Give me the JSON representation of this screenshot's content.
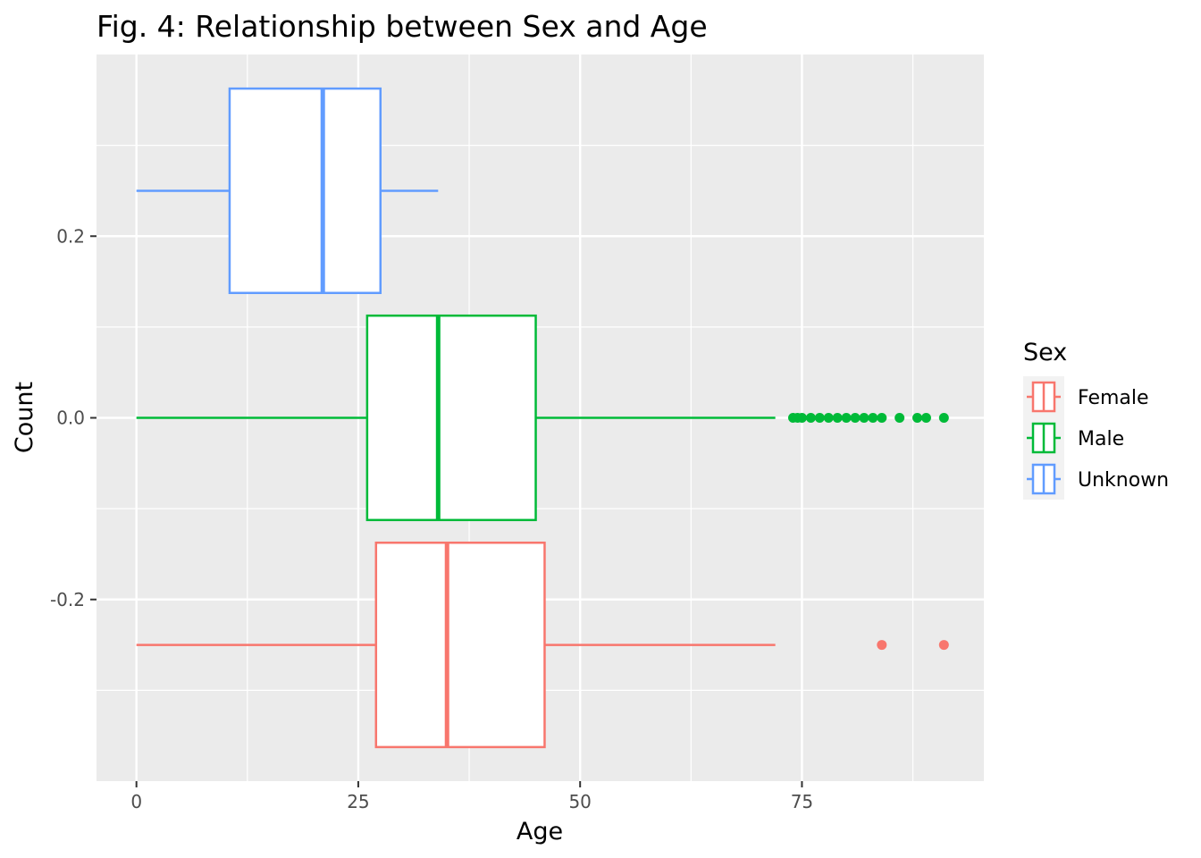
{
  "chart_data": {
    "type": "boxplot",
    "orientation": "horizontal",
    "title": "Fig. 4: Relationship between Sex and Age",
    "xlabel": "Age",
    "ylabel": "Count",
    "xlim": [
      -4.5,
      95.5
    ],
    "ylim": [
      -0.4,
      0.4
    ],
    "x_ticks": [
      0,
      25,
      50,
      75
    ],
    "x_tick_labels": [
      "0",
      "25",
      "50",
      "75"
    ],
    "y_ticks": [
      -0.2,
      0.0,
      0.2
    ],
    "y_tick_labels": [
      "-0.2",
      "0.0",
      "0.2"
    ],
    "grid": true,
    "legend": {
      "title": "Sex",
      "position": "right",
      "entries": [
        "Female",
        "Male",
        "Unknown"
      ]
    },
    "series": [
      {
        "name": "Female",
        "color": "#F8766D",
        "y_center": -0.25,
        "box_half_height": 0.1125,
        "whisker_low": 0,
        "q1": 27,
        "median": 35,
        "q3": 46,
        "whisker_high": 72,
        "outliers": [
          84,
          91
        ]
      },
      {
        "name": "Male",
        "color": "#00BA38",
        "y_center": 0.0,
        "box_half_height": 0.1125,
        "whisker_low": 0,
        "q1": 26,
        "median": 34,
        "q3": 45,
        "whisker_high": 72,
        "outliers": [
          74,
          74.5,
          75,
          76,
          77,
          78,
          79,
          80,
          81,
          82,
          83,
          84,
          86,
          88,
          89,
          91
        ]
      },
      {
        "name": "Unknown",
        "color": "#619CFF",
        "y_center": 0.25,
        "box_half_height": 0.1125,
        "whisker_low": 0,
        "q1": 10.5,
        "median": 21,
        "q3": 27.5,
        "whisker_high": 34,
        "outliers": []
      }
    ]
  }
}
